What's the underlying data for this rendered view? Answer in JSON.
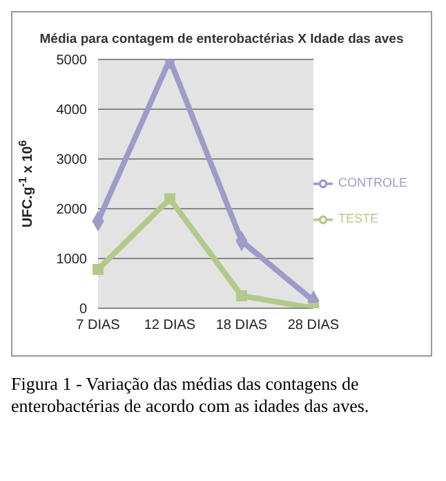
{
  "chart_data": {
    "type": "line",
    "title": "Média para contagem de enterobactérias X Idade das aves",
    "ylabel": "UFC.g$^{-1}$ x 10$^{6}$",
    "categories": [
      "7 DIAS",
      "12 DIAS",
      "18 DIAS",
      "28 DIAS"
    ],
    "series": [
      {
        "name": "CONTROLE",
        "color": "#9e9bc9",
        "marker": "diamond",
        "values": [
          1750,
          5000,
          1350,
          150
        ]
      },
      {
        "name": "TESTE",
        "color": "#b3c98a",
        "marker": "square",
        "values": [
          780,
          2200,
          250,
          0
        ]
      }
    ],
    "ylim": [
      0,
      5000
    ],
    "yticks": [
      0,
      1000,
      2000,
      3000,
      4000,
      5000
    ],
    "grid": "y",
    "legend": "right",
    "annotations": [
      "Figura 1 - Variação das médias das contagens de enterobactérias de acordo com as idades das aves."
    ]
  }
}
